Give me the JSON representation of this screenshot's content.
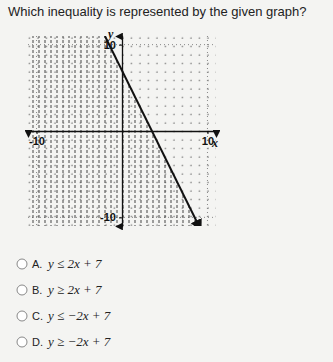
{
  "question": "Which inequality is represented by the given graph?",
  "chart_data": {
    "type": "line",
    "xlabel": "x",
    "ylabel": "y",
    "xlim": [
      -11,
      11
    ],
    "ylim": [
      -11,
      11
    ],
    "xticks": [
      -10,
      10
    ],
    "yticks": [
      -10,
      10
    ],
    "grid": true,
    "series": [
      {
        "type": "area",
        "color": "#444444",
        "x": [
          -11,
          -2,
          9
        ],
        "values": [
          11,
          11,
          -11
        ]
      },
      {
        "type": "line",
        "color": "#111111",
        "line_style": "solid",
        "x": [
          -2,
          9
        ],
        "values": [
          11,
          -11
        ]
      }
    ]
  },
  "options": [
    {
      "letter": "A.",
      "text": "y ≤ 2x + 7"
    },
    {
      "letter": "B.",
      "text": "y ≥ 2x + 7"
    },
    {
      "letter": "C.",
      "text": "y ≤ −2x + 7"
    },
    {
      "letter": "D.",
      "text": "y ≥ −2x + 7"
    }
  ]
}
